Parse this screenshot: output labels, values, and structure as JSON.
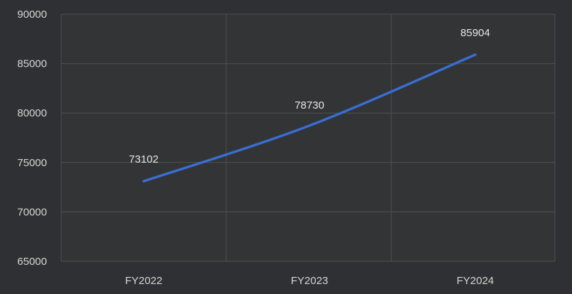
{
  "chart_data": {
    "type": "line",
    "title": "",
    "xlabel": "",
    "ylabel": "",
    "categories": [
      "FY2022",
      "FY2023",
      "FY2024"
    ],
    "series": [
      {
        "values": [
          73102,
          78730,
          85904
        ],
        "color": "#3a6fd6"
      }
    ],
    "data_labels": [
      "73102",
      "78730",
      "85904"
    ],
    "ylim": [
      65000,
      90000
    ],
    "yticks": [
      65000,
      70000,
      75000,
      80000,
      85000,
      90000
    ],
    "ytick_labels": [
      "65000",
      "70000",
      "75000",
      "80000",
      "85000",
      "90000"
    ],
    "grid": true,
    "legend": "none",
    "colors": {
      "background": "#2f3033",
      "plot_area": "#333436",
      "grid": "#4f5053",
      "text": "#d4d4d4",
      "line": "#3a6fd6"
    }
  }
}
